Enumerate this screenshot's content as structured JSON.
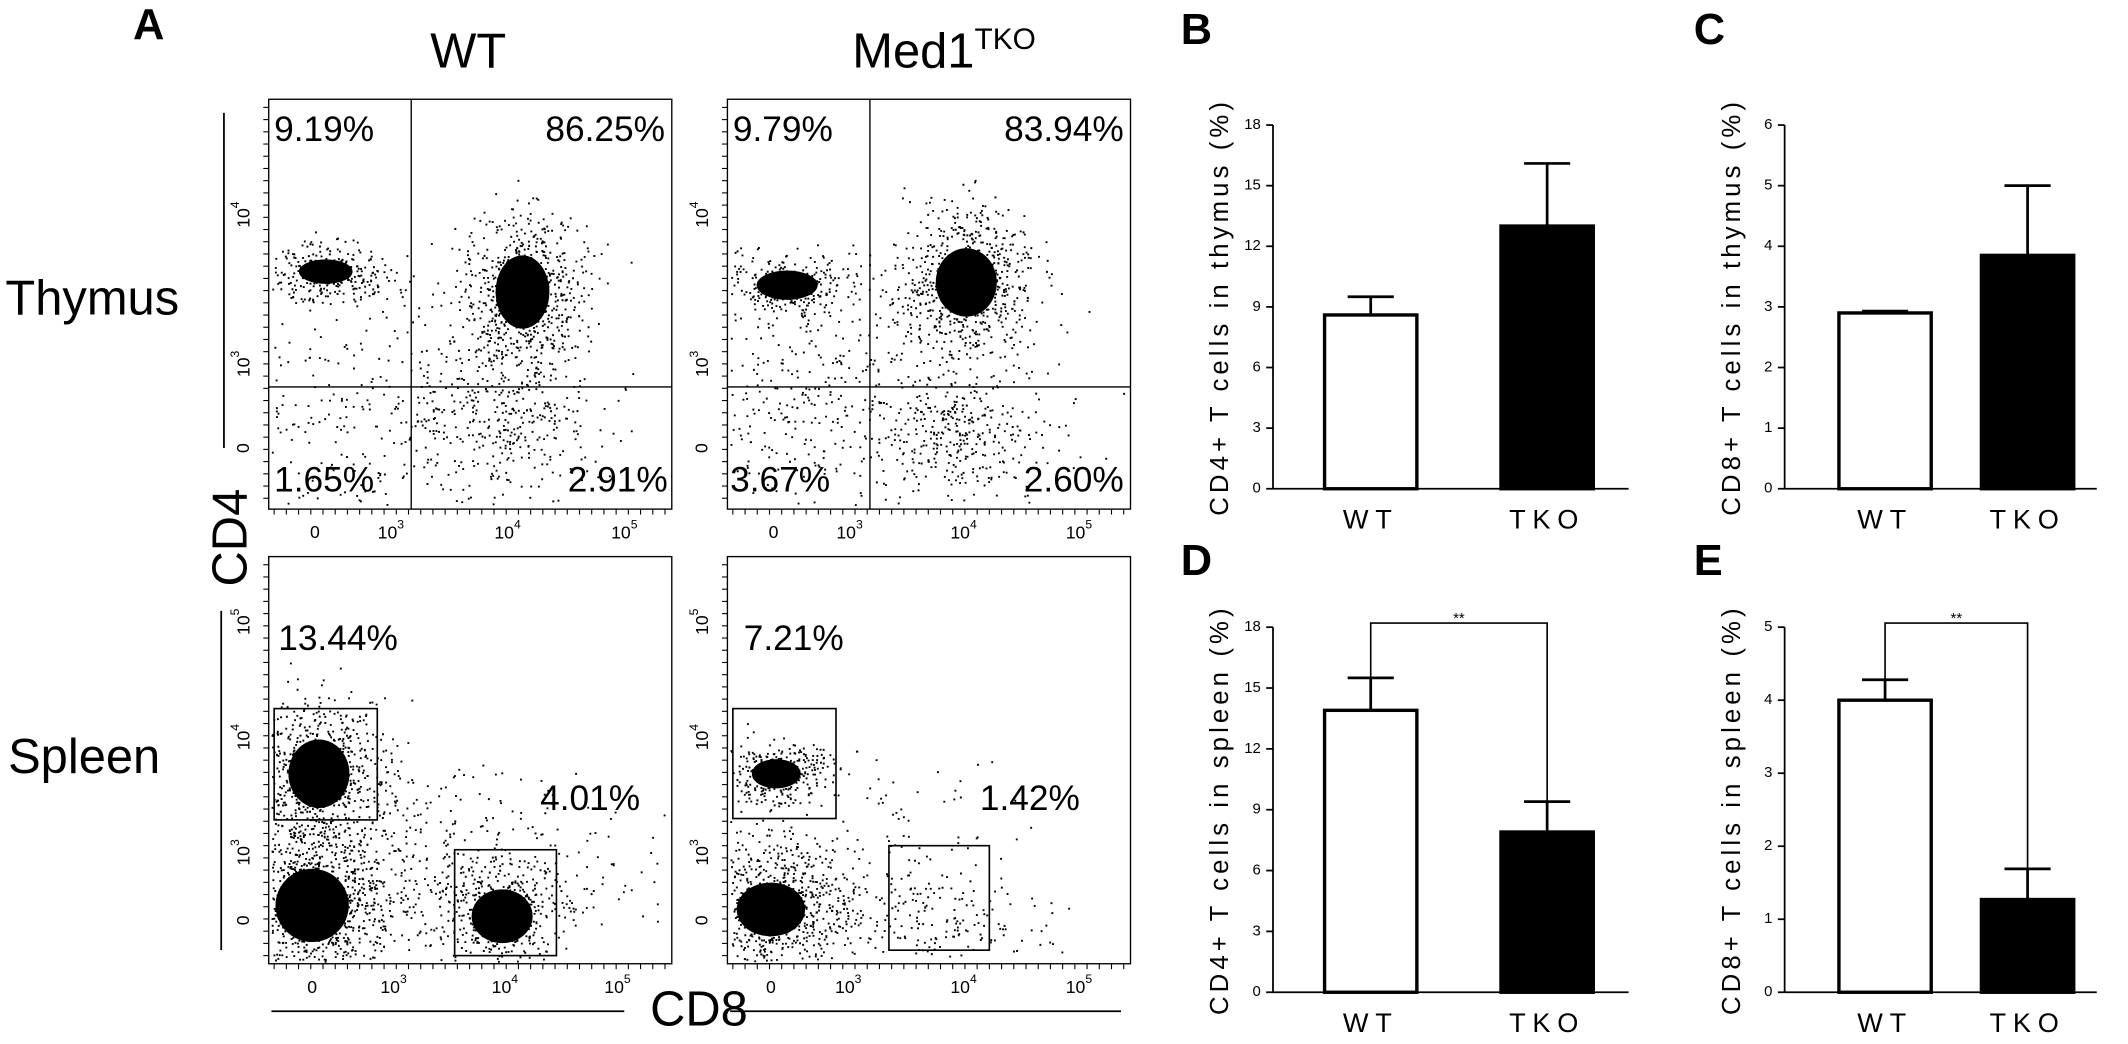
{
  "panel_labels": [
    "A",
    "B",
    "C",
    "D",
    "E"
  ],
  "flow": {
    "columns": [
      {
        "text": "WT"
      },
      {
        "text": "Med1",
        "sup": "TKO"
      }
    ],
    "rows": [
      "Thymus",
      "Spleen"
    ],
    "x_label": "CD8",
    "y_label": "CD4",
    "tick_zero": "0",
    "tick_powers": [
      {
        "base": "10",
        "exp": "3"
      },
      {
        "base": "10",
        "exp": "4"
      },
      {
        "base": "10",
        "exp": "5"
      }
    ],
    "plots": [
      [
        [
          "9.19%",
          "86.25%",
          "1.65%",
          "2.91%"
        ],
        [
          "9.79%",
          "83.94%",
          "3.67%",
          "2.60%"
        ]
      ],
      [
        [
          "13.44%",
          "4.01%"
        ],
        [
          "7.21%",
          "1.42%"
        ]
      ]
    ]
  },
  "chart_data": [
    {
      "type": "bar",
      "ylabel": "CD4+ T cells in thymus (%)",
      "categories": [
        "WT",
        "TKO"
      ],
      "values": [
        8.6,
        13
      ],
      "errors": [
        0.9,
        3.1
      ],
      "colors": [
        "#ffffff",
        "#000000"
      ],
      "ylim": [
        0,
        18
      ],
      "yticks": [
        0,
        3,
        6,
        9,
        12,
        15,
        18
      ]
    },
    {
      "type": "bar",
      "ylabel": "CD8+ T cells in thymus (%)",
      "categories": [
        "WT",
        "TKO"
      ],
      "values": [
        2.9,
        3.85
      ],
      "errors": [
        0.03,
        1.15
      ],
      "colors": [
        "#ffffff",
        "#000000"
      ],
      "ylim": [
        0,
        6
      ],
      "yticks": [
        0,
        1,
        2,
        3,
        4,
        5,
        6
      ]
    },
    {
      "type": "bar",
      "ylabel": "CD4+ T cells in spleen (%)",
      "categories": [
        "WT",
        "TKO"
      ],
      "values": [
        13.9,
        7.9
      ],
      "errors": [
        1.6,
        1.5
      ],
      "colors": [
        "#ffffff",
        "#000000"
      ],
      "ylim": [
        0,
        18
      ],
      "yticks": [
        0,
        3,
        6,
        9,
        12,
        15,
        18
      ],
      "significance": "**"
    },
    {
      "type": "bar",
      "ylabel": "CD8+ T cells in spleen (%)",
      "categories": [
        "WT",
        "TKO"
      ],
      "values": [
        4.0,
        1.27
      ],
      "errors": [
        0.28,
        0.42
      ],
      "colors": [
        "#ffffff",
        "#000000"
      ],
      "ylim": [
        0,
        5
      ],
      "yticks": [
        0,
        1,
        2,
        3,
        4,
        5
      ],
      "significance": "**"
    }
  ]
}
